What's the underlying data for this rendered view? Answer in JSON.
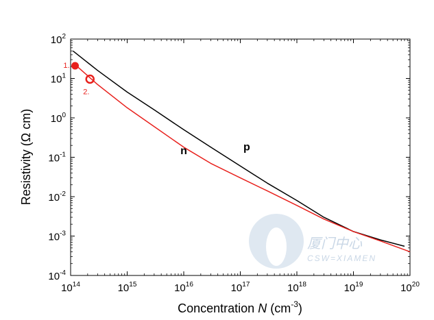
{
  "chart_data": {
    "type": "line",
    "title": "",
    "xlabel": {
      "prefix": "Concentration ",
      "var": "N",
      "unit_open": " (cm",
      "unit_exp": "-3",
      "unit_close": ")"
    },
    "ylabel": {
      "prefix": "Resistivity (",
      "omega": "Ω",
      "suffix": " cm)"
    },
    "x_scale": "log",
    "y_scale": "log",
    "xlim": [
      100000000000000.0,
      1e+20
    ],
    "ylim": [
      0.0001,
      100.0
    ],
    "x_ticks": [
      {
        "base": "10",
        "exp": "14",
        "value": 100000000000000.0
      },
      {
        "base": "10",
        "exp": "15",
        "value": 1000000000000000.0
      },
      {
        "base": "10",
        "exp": "16",
        "value": 1e+16
      },
      {
        "base": "10",
        "exp": "17",
        "value": 1e+17
      },
      {
        "base": "10",
        "exp": "18",
        "value": 1e+18
      },
      {
        "base": "10",
        "exp": "19",
        "value": 1e+19
      },
      {
        "base": "10",
        "exp": "20",
        "value": 1e+20
      }
    ],
    "y_ticks": [
      {
        "base": "10",
        "exp": "2",
        "value": 100.0
      },
      {
        "base": "10",
        "exp": "1",
        "value": 10.0
      },
      {
        "base": "10",
        "exp": "0",
        "value": 1.0
      },
      {
        "base": "10",
        "exp": "-1",
        "value": 0.1
      },
      {
        "base": "10",
        "exp": "-2",
        "value": 0.01
      },
      {
        "base": "10",
        "exp": "-3",
        "value": 0.001
      },
      {
        "base": "10",
        "exp": "-4",
        "value": 0.0001
      }
    ],
    "grid": false,
    "series": [
      {
        "name": "p",
        "color": "#000000",
        "x": [
          110000000000000.0,
          300000000000000.0,
          1000000000000000.0,
          3000000000000000.0,
          1e+16,
          3e+16,
          1e+17,
          3e+17,
          1e+18,
          3e+18,
          1e+19,
          3e+19,
          8e+19
        ],
        "y": [
          50,
          16,
          4.5,
          1.6,
          0.5,
          0.18,
          0.06,
          0.022,
          0.008,
          0.003,
          0.0013,
          0.0008,
          0.00055
        ]
      },
      {
        "name": "n",
        "color": "#e8201c",
        "x": [
          110000000000000.0,
          300000000000000.0,
          1000000000000000.0,
          3000000000000000.0,
          1e+16,
          3e+16,
          1e+17,
          3e+17,
          1e+18,
          3e+18,
          1e+19,
          3e+19,
          1e+20
        ],
        "y": [
          25,
          7,
          1.8,
          0.6,
          0.18,
          0.07,
          0.03,
          0.014,
          0.006,
          0.0027,
          0.0013,
          0.00075,
          0.0004
        ]
      }
    ],
    "annotations": [
      {
        "text": "n",
        "x": 1e+16,
        "y": 0.12,
        "color": "#000000"
      },
      {
        "text": "p",
        "x": 1.3e+17,
        "y": 0.15,
        "color": "#000000"
      }
    ],
    "markers": [
      {
        "label": "1.",
        "x": 120000000000000.0,
        "y": 21,
        "style": "filled",
        "color": "#e8201c"
      },
      {
        "label": "2.",
        "x": 220000000000000.0,
        "y": 9.6,
        "style": "ring",
        "color": "#e8201c"
      }
    ],
    "watermark": {
      "text_cn": "厦门中心",
      "text_en": "CSW=XIAMEN",
      "color": "#c9d7e6"
    }
  }
}
